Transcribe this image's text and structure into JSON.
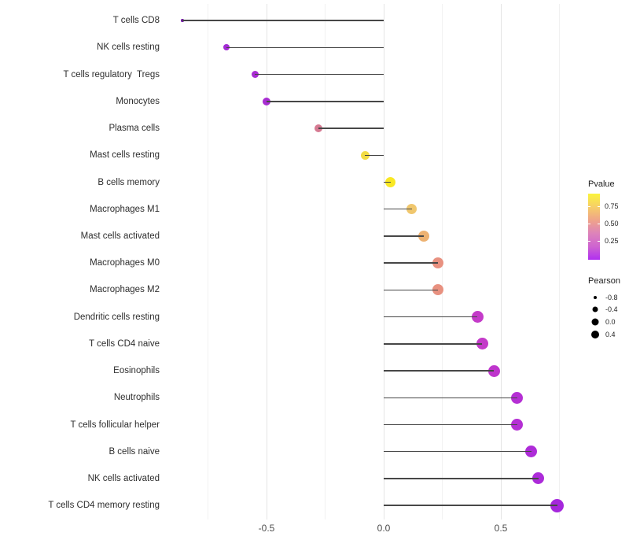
{
  "chart_data": {
    "type": "scatter",
    "subtype": "lollipop",
    "title": "",
    "xlabel": "",
    "ylabel": "",
    "x_axis": {
      "tick_labels": [
        "-0.5",
        "0.0",
        "0.5"
      ],
      "tick_values": [
        -0.5,
        0.0,
        0.5
      ],
      "minor_gridlines": [
        -0.75,
        -0.25,
        0.25,
        0.75
      ],
      "range": [
        -0.94,
        0.83
      ],
      "grid": "vertical-only"
    },
    "points": [
      {
        "label": "T cells CD8",
        "pearson": -0.86,
        "color": "#7415a8",
        "radius": 1.8
      },
      {
        "label": "NK cells resting",
        "pearson": -0.67,
        "color": "#a32bd4",
        "radius": 4
      },
      {
        "label": "T cells regulatory  Tregs",
        "pearson": -0.55,
        "color": "#a82cd2",
        "radius": 4.5
      },
      {
        "label": "Monocytes",
        "pearson": -0.5,
        "color": "#a82cd2",
        "radius": 5
      },
      {
        "label": "Plasma cells",
        "pearson": -0.28,
        "color": "#d67a92",
        "radius": 5
      },
      {
        "label": "Mast cells resting",
        "pearson": -0.08,
        "color": "#f2dc45",
        "radius": 5.5
      },
      {
        "label": "B cells memory",
        "pearson": 0.03,
        "color": "#f9e824",
        "radius": 6.5
      },
      {
        "label": "Macrophages M1",
        "pearson": 0.12,
        "color": "#f0c76e",
        "radius": 6.5
      },
      {
        "label": "Mast cells activated",
        "pearson": 0.17,
        "color": "#edb272",
        "radius": 7
      },
      {
        "label": "Macrophages M0",
        "pearson": 0.23,
        "color": "#e89180",
        "radius": 7
      },
      {
        "label": "Macrophages M2",
        "pearson": 0.23,
        "color": "#e89180",
        "radius": 7
      },
      {
        "label": "Dendritic cells resting",
        "pearson": 0.4,
        "color": "#c43bc9",
        "radius": 7.5
      },
      {
        "label": "T cells CD4 naive",
        "pearson": 0.42,
        "color": "#c43bc9",
        "radius": 7.5
      },
      {
        "label": "Eosinophils",
        "pearson": 0.47,
        "color": "#be35cc",
        "radius": 7.5
      },
      {
        "label": "Neutrophils",
        "pearson": 0.57,
        "color": "#b52fd4",
        "radius": 7.5
      },
      {
        "label": "T cells follicular helper",
        "pearson": 0.57,
        "color": "#b52fd4",
        "radius": 7.5
      },
      {
        "label": "B cells naive",
        "pearson": 0.63,
        "color": "#ae2cd8",
        "radius": 7.5
      },
      {
        "label": "NK cells activated",
        "pearson": 0.66,
        "color": "#ac2bd9",
        "radius": 7.5
      },
      {
        "label": "T cells CD4 memory resting",
        "pearson": 0.74,
        "color": "#a527dc",
        "radius": 8.5
      }
    ],
    "legend_pvalue": {
      "title": "Pvalue",
      "tick_labels": [
        "0.75",
        "0.50",
        "0.25"
      ],
      "gradient_top_to_bottom": [
        "#fbf43c",
        "#f6ce68",
        "#efa489",
        "#dd83ba",
        "#ce64d0",
        "#b02ff0"
      ]
    },
    "legend_pearson": {
      "title": "Pearson",
      "dot_color": "#000000",
      "items": [
        {
          "label": "-0.8",
          "radius": 2
        },
        {
          "label": "-0.4",
          "radius": 3.5
        },
        {
          "label": "0.0",
          "radius": 4.5
        },
        {
          "label": "0.4",
          "radius": 5
        }
      ]
    },
    "stem_color": "#474747",
    "background": "#ffffff"
  }
}
